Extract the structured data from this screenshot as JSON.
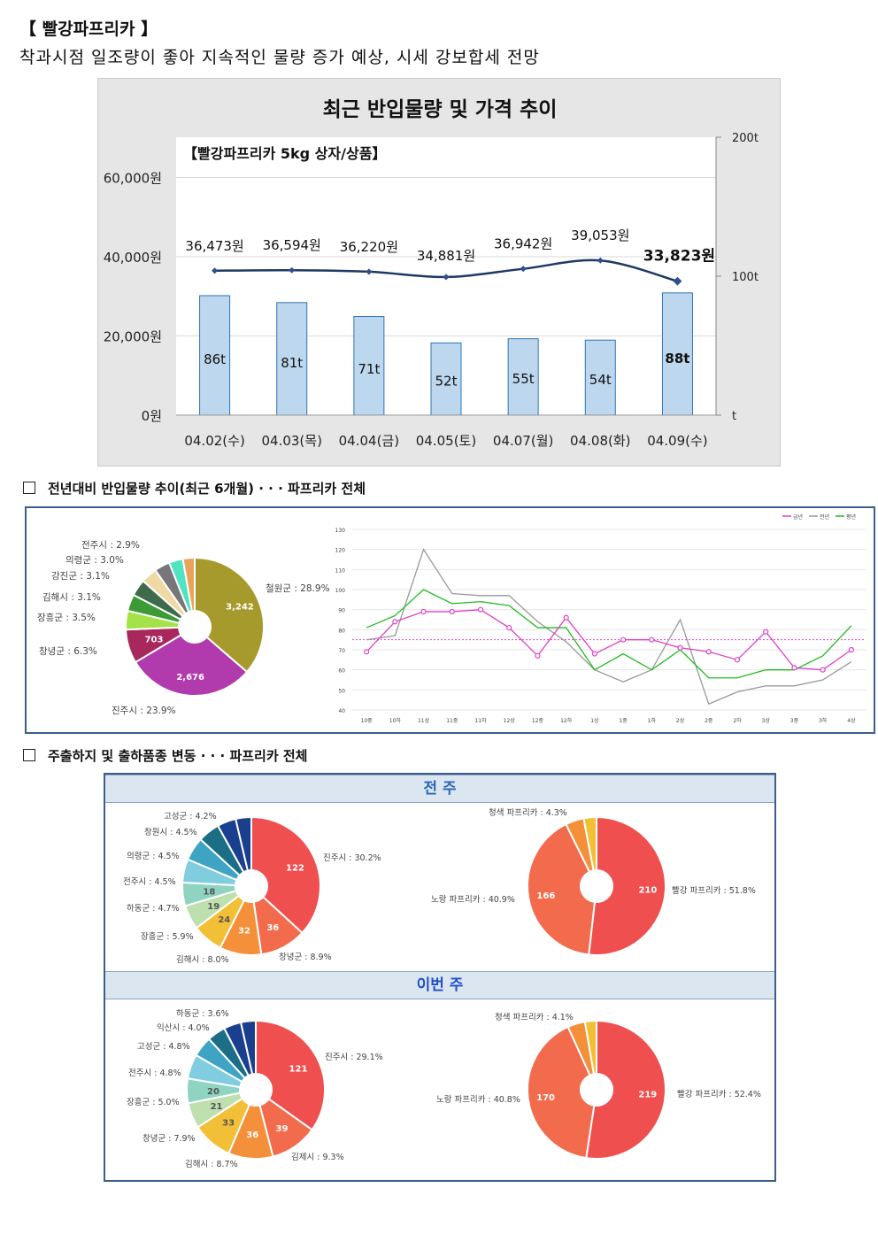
{
  "header": {
    "title": "【 빨강파프리카 】",
    "subtitle": "착과시점 일조량이 좋아 지속적인 물량 증가 예상, 시세 강보합세 전망"
  },
  "main_chart": {
    "title": "최근 반입물량 및 가격 추이",
    "subtitle": "【빨강파프리카 5kg 상자/상품】",
    "left_ticks": [
      "60,000원",
      "40,000원",
      "20,000원",
      "0원"
    ],
    "right_ticks": [
      "200t",
      "100t",
      "t"
    ],
    "price_labels": [
      "36,473원",
      "36,594원",
      "36,220원",
      "34,881원",
      "36,942원",
      "39,053원",
      "33,823원"
    ],
    "volume_labels": [
      "86t",
      "81t",
      "71t",
      "52t",
      "55t",
      "54t",
      "88t"
    ]
  },
  "chart_data": [
    {
      "type": "bar",
      "title": "최근 반입물량 및 가격 추이",
      "categories": [
        "04.02(수)",
        "04.03(목)",
        "04.04(금)",
        "04.05(토)",
        "04.07(월)",
        "04.08(화)",
        "04.09(수)"
      ],
      "series": [
        {
          "values": [
            36473,
            36594,
            36220,
            34881,
            36942,
            39053,
            33823
          ],
          "axis": "left",
          "kind": "line"
        },
        {
          "values": [
            86,
            81,
            71,
            52,
            55,
            54,
            88
          ],
          "axis": "right",
          "kind": "bar"
        }
      ],
      "ylim": [
        0,
        70000
      ],
      "y2lim": [
        0,
        200
      ],
      "colors": {
        "bar": "#bdd7ee",
        "bar_stroke": "#2e75b6",
        "line": "#1f3864"
      }
    },
    {
      "type": "pie",
      "labels": [
        "철원군",
        "진주시",
        "창녕군",
        "장흥군",
        "김해시",
        "강진군",
        "의령군",
        "전주시",
        "",
        ""
      ],
      "percents": [
        28.9,
        23.9,
        6.3,
        3.5,
        3.1,
        3.1,
        3.0,
        2.9,
        2.6,
        2.2
      ],
      "value_labels": [
        "3,242",
        "2,676",
        "703"
      ],
      "colors": [
        "#a79a2d",
        "#b13aad",
        "#a8275d",
        "#a4e24a",
        "#3c9b35",
        "#3d6b4c",
        "#efd9a5",
        "#777777",
        "#4fe3c1",
        "#e8a35c"
      ]
    },
    {
      "type": "line",
      "x": [
        "10중",
        "10하",
        "11상",
        "11중",
        "11하",
        "12상",
        "12중",
        "12하",
        "1상",
        "1중",
        "1하",
        "2상",
        "2중",
        "2하",
        "3상",
        "3중",
        "3하",
        "4상"
      ],
      "series": [
        {
          "name": "금년",
          "values": [
            69,
            84,
            89,
            89,
            90,
            81,
            67,
            86,
            68,
            75,
            75,
            71,
            69,
            65,
            79,
            61,
            60,
            70
          ],
          "color": "#e040c8"
        },
        {
          "name": "전년",
          "values": [
            75,
            77,
            120,
            98,
            97,
            97,
            84,
            74,
            60,
            54,
            60,
            85,
            43,
            49,
            52,
            52,
            55,
            64
          ],
          "color": "#999999"
        },
        {
          "name": "평년",
          "values": [
            81,
            87,
            100,
            93,
            94,
            92,
            81,
            81,
            60,
            68,
            60,
            70,
            56,
            56,
            60,
            60,
            67,
            82
          ],
          "color": "#22bb22"
        }
      ],
      "ylim": [
        40,
        130
      ],
      "y_ticks": [
        "130",
        "120",
        "110",
        "100",
        "90",
        "80",
        "70",
        "60",
        "50",
        "40"
      ],
      "ref_line": 75
    },
    {
      "type": "pie",
      "title": "전 주",
      "labels": [
        "진주시",
        "창녕군",
        "김해시",
        "장흥군",
        "하동군",
        "전주시",
        "의령군",
        "창원시",
        "고성군",
        "",
        ""
      ],
      "percents": [
        30.2,
        8.9,
        8.0,
        5.9,
        4.7,
        4.5,
        4.5,
        4.5,
        4.2,
        3.6,
        3.0
      ],
      "value_labels": [
        "122",
        "36",
        "32",
        "24",
        "19",
        "18"
      ],
      "colors": [
        "#ef4f4f",
        "#f26b4d",
        "#f48f3a",
        "#f2c037",
        "#bedfae",
        "#8fd3c1",
        "#80cde0",
        "#3fa3c4",
        "#1c6e86",
        "#1b3f8f",
        "#1b3f8f"
      ]
    },
    {
      "type": "pie",
      "title": "전 주",
      "labels": [
        "빨강 파프리카",
        "노랑 파프리카",
        "청색 파프리카",
        ""
      ],
      "percents": [
        51.8,
        40.9,
        4.3,
        3.0
      ],
      "value_labels": [
        "210",
        "166"
      ],
      "colors": [
        "#ef4f4f",
        "#f26b4d",
        "#f48f3a",
        "#f2c037"
      ]
    },
    {
      "type": "pie",
      "title": "이번 주",
      "labels": [
        "진주시",
        "김제시",
        "김해시",
        "창녕군",
        "장흥군",
        "전주시",
        "고성군",
        "익산시",
        "하동군",
        "",
        ""
      ],
      "percents": [
        29.1,
        9.3,
        8.7,
        7.9,
        5.0,
        4.8,
        4.8,
        4.0,
        3.6,
        3.4,
        2.9
      ],
      "value_labels": [
        "121",
        "39",
        "36",
        "33",
        "21",
        "20"
      ],
      "colors": [
        "#ef4f4f",
        "#f26b4d",
        "#f48f3a",
        "#f2c037",
        "#bedfae",
        "#8fd3c1",
        "#80cde0",
        "#3fa3c4",
        "#1c6e86",
        "#1b3f8f",
        "#1b3f8f"
      ]
    },
    {
      "type": "pie",
      "title": "이번 주",
      "labels": [
        "빨강 파프리카",
        "노랑 파프리카",
        "청색 파프리카",
        ""
      ],
      "percents": [
        52.4,
        40.8,
        4.1,
        2.7
      ],
      "value_labels": [
        "219",
        "170"
      ],
      "colors": [
        "#ef4f4f",
        "#f26b4d",
        "#f48f3a",
        "#f2c037"
      ]
    }
  ],
  "section2": {
    "title": "전년대비 반입물량 추이(최근 6개월)   · · · 파프리카 전체",
    "pie_labels": [
      "전주시 : 2.9%",
      "의령군 : 3.0%",
      "강진군 : 3.1%",
      "김해시 : 3.1%",
      "장흥군 : 3.5%",
      "창녕군 : 6.3%",
      "진주시 : 23.9%",
      "철원군 : 28.9%"
    ],
    "legend": [
      "금년",
      "전년",
      "평년"
    ]
  },
  "section3": {
    "title": "주출하지 및 출하품종 변동 · · · 파프리카 전체",
    "band1": "전 주",
    "band2": "이번 주",
    "prev_region_labels": [
      "고성군 : 4.2%",
      "창원시 : 4.5%",
      "의령군 : 4.5%",
      "전주시 : 4.5%",
      "하동군 : 4.7%",
      "장흥군 : 5.9%",
      "김해시 : 8.0%",
      "창녕군 : 8.9%",
      "진주시 : 30.2%"
    ],
    "prev_variety_labels": [
      "청색 파프리카 : 4.3%",
      "노랑 파프리카 : 40.9%",
      "빨강 파프리카 : 51.8%"
    ],
    "cur_region_labels": [
      "하동군 : 3.6%",
      "익산시 : 4.0%",
      "고성군 : 4.8%",
      "전주시 : 4.8%",
      "장흥군 : 5.0%",
      "창녕군 : 7.9%",
      "김해시 : 8.7%",
      "김제시 : 9.3%",
      "진주시 : 29.1%"
    ],
    "cur_variety_labels": [
      "청색 파프리카 : 4.1%",
      "노랑 파프리카 : 40.8%",
      "빨강 파프리카 : 52.4%"
    ]
  }
}
